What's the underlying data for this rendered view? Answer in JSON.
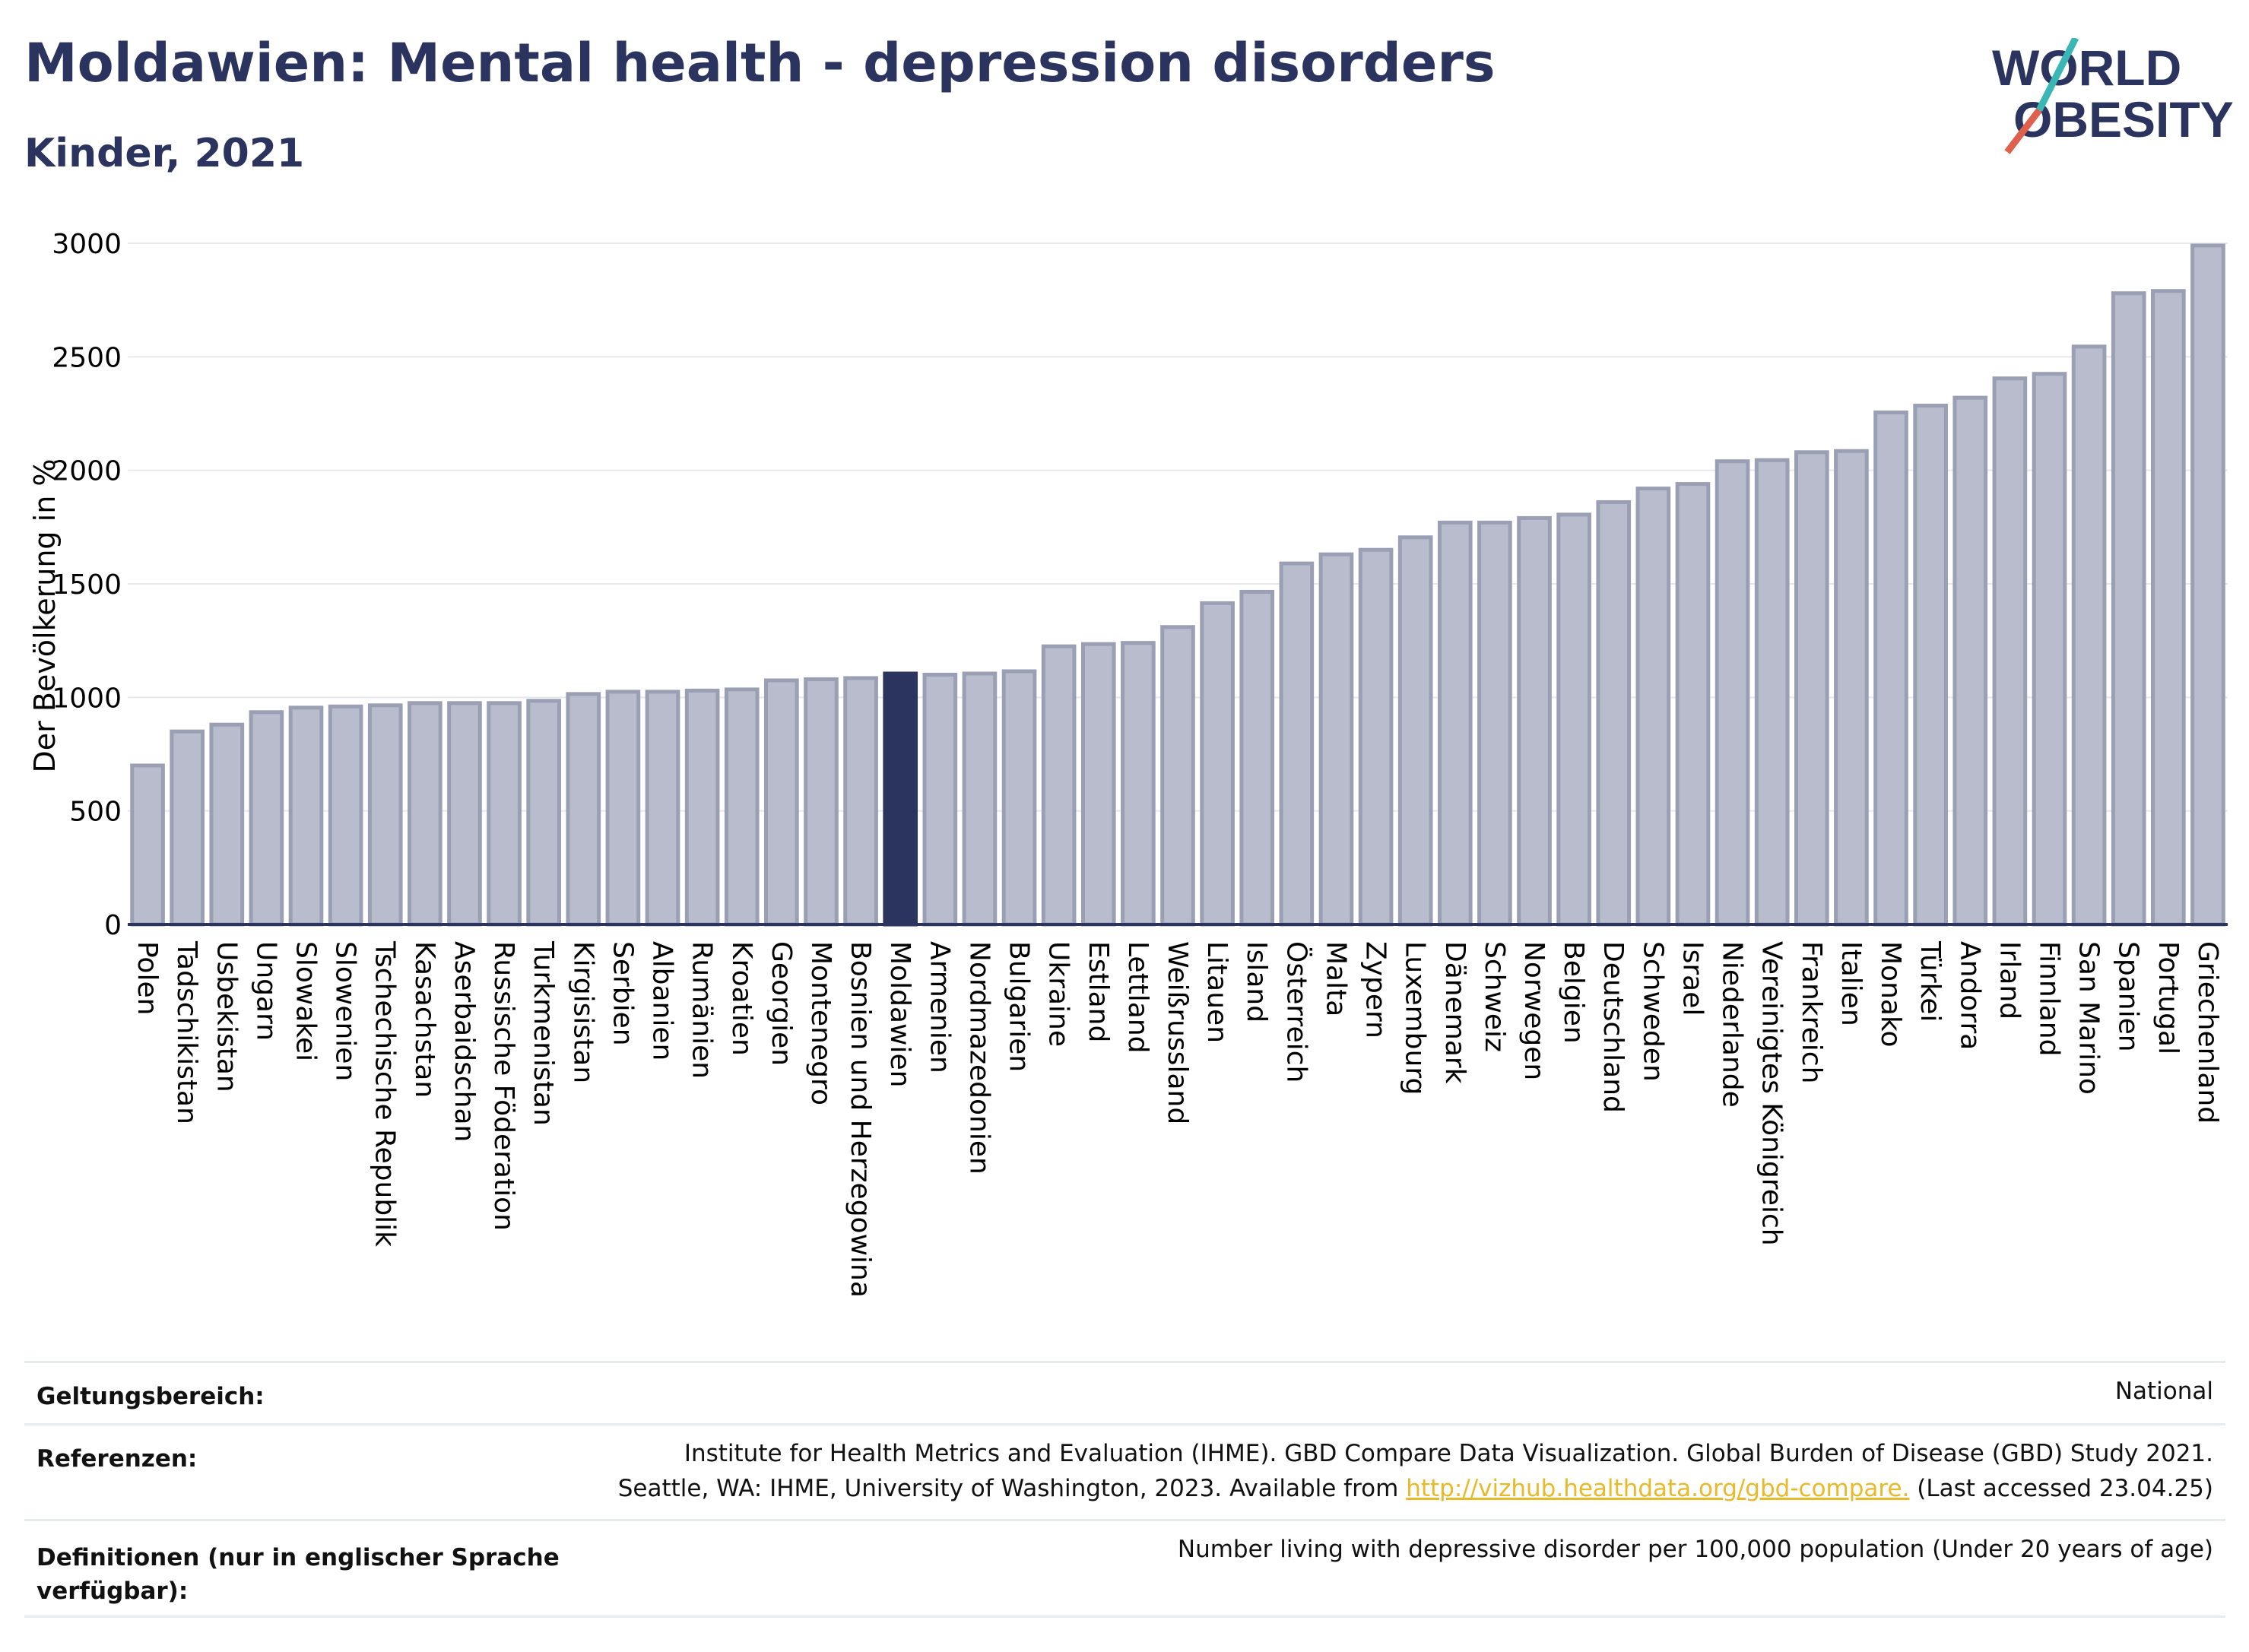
{
  "header": {
    "title": "Moldawien: Mental health - depression disorders",
    "subtitle": "Kinder, 2021",
    "logo_line1": "WORLD",
    "logo_line2": "OBESITY"
  },
  "colors": {
    "bar": "#b8bccc",
    "bar_border": "#9a9fb4",
    "highlight": "#2b345e",
    "grid": "#e6e8ee",
    "title": "#2b345e",
    "link": "#e8b928",
    "logo_teal": "#3ab7b4",
    "logo_red": "#e0604e"
  },
  "chart_data": {
    "type": "bar",
    "ylabel": "Der Bevölkerung in %",
    "ylim": [
      0,
      3000
    ],
    "yticks": [
      0,
      500,
      1000,
      1500,
      2000,
      2500,
      3000
    ],
    "highlight": "Moldawien",
    "grid": true,
    "categories": [
      "Polen",
      "Tadschikistan",
      "Usbekistan",
      "Ungarn",
      "Slowakei",
      "Slowenien",
      "Tschechische Republik",
      "Kasachstan",
      "Aserbaidschan",
      "Russische Föderation",
      "Turkmenistan",
      "Kirgisistan",
      "Serbien",
      "Albanien",
      "Rumänien",
      "Kroatien",
      "Georgien",
      "Montenegro",
      "Bosnien und Herzegowina",
      "Moldawien",
      "Armenien",
      "Nordmazedonien",
      "Bulgarien",
      "Ukraine",
      "Estland",
      "Lettland",
      "Weißrussland",
      "Litauen",
      "Island",
      "Österreich",
      "Malta",
      "Zypern",
      "Luxemburg",
      "Dänemark",
      "Schweiz",
      "Norwegen",
      "Belgien",
      "Deutschland",
      "Schweden",
      "Israel",
      "Niederlande",
      "Vereinigtes Königreich",
      "Frankreich",
      "Italien",
      "Monako",
      "Türkei",
      "Andorra",
      "Irland",
      "Finnland",
      "San Marino",
      "Spanien",
      "Portugal",
      "Griechenland"
    ],
    "values": [
      700,
      850,
      880,
      935,
      955,
      960,
      965,
      975,
      975,
      975,
      985,
      1015,
      1025,
      1025,
      1030,
      1035,
      1075,
      1080,
      1085,
      1105,
      1100,
      1105,
      1115,
      1225,
      1235,
      1240,
      1310,
      1415,
      1465,
      1590,
      1630,
      1650,
      1705,
      1770,
      1770,
      1790,
      1805,
      1860,
      1920,
      1940,
      2040,
      2045,
      2080,
      2085,
      2255,
      2285,
      2320,
      2405,
      2425,
      2545,
      2780,
      2790,
      2990
    ]
  },
  "meta": {
    "scope_label": "Geltungsbereich:",
    "scope_value": "National",
    "references_label": "Referenzen:",
    "references_line1": "Institute for Health Metrics and Evaluation (IHME). GBD Compare Data Visualization. Global Burden of Disease (GBD) Study 2021.",
    "references_line2_before": "Seattle, WA: IHME, University of Washington, 2023. Available from ",
    "references_link": "http://vizhub.healthdata.org/gbd-compare.",
    "references_line2_after": " (Last accessed 23.04.25)",
    "definitions_label": "Definitionen (nur in englischer Sprache verfügbar):",
    "definitions_value": "Number living with depressive disorder per 100,000 population (Under 20 years of age)"
  }
}
